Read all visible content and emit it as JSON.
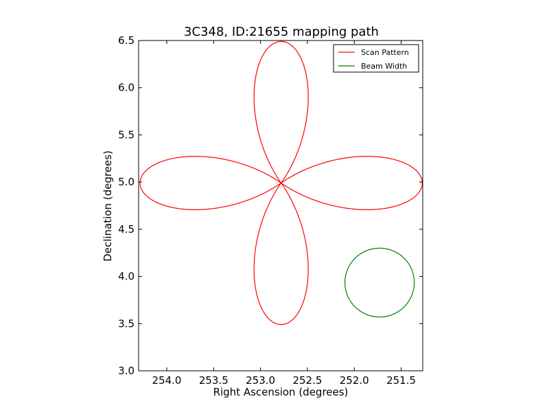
{
  "chart_data": {
    "type": "line",
    "title": "3C348, ID:21655 mapping path",
    "xlabel": "Right Ascension (degrees)",
    "ylabel": "Declination (degrees)",
    "xlim": [
      254.3,
      251.27
    ],
    "ylim": [
      3.0,
      6.5
    ],
    "x_ticks": [
      254.0,
      253.5,
      253.0,
      252.5,
      252.0,
      251.5
    ],
    "x_tick_labels": [
      "254.0",
      "253.5",
      "253.0",
      "252.5",
      "252.0",
      "251.5"
    ],
    "y_ticks": [
      3.0,
      3.5,
      4.0,
      4.5,
      5.0,
      5.5,
      6.0,
      6.5
    ],
    "y_tick_labels": [
      "3.0",
      "3.5",
      "4.0",
      "4.5",
      "5.0",
      "5.5",
      "6.0",
      "6.5"
    ],
    "grid": false,
    "legend_position": "top-right",
    "series": [
      {
        "name": "Scan Pattern",
        "color": "#ff0000",
        "pattern": "four-lobed rose",
        "center": [
          252.78,
          4.99
        ],
        "lobe_extent_ra": 1.505,
        "lobe_extent_dec": 1.5,
        "lobe_halfwidth_ra": 0.409,
        "lobe_halfwidth_dec": 0.4
      },
      {
        "name": "Beam Width",
        "color": "#008000",
        "shape": "circle",
        "center": [
          251.73,
          3.935
        ],
        "radius_ra": 0.37,
        "radius_dec": 0.365
      }
    ]
  }
}
